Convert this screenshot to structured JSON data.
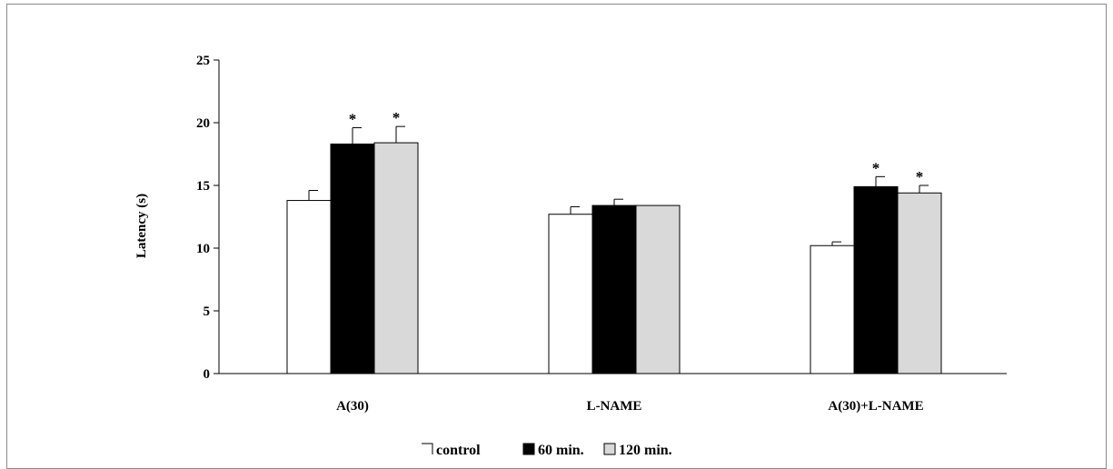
{
  "chart_data": {
    "type": "bar",
    "title": "",
    "xlabel": "",
    "ylabel": "Latency (s)",
    "ylim": [
      0,
      25
    ],
    "yticks": [
      0,
      5,
      10,
      15,
      20,
      25
    ],
    "grid": false,
    "legend_position": "bottom",
    "categories": [
      "A(30)",
      "L-NAME",
      "A(30)+L-NAME"
    ],
    "series": [
      {
        "name": "control",
        "color": "#ffffff",
        "values": [
          13.8,
          12.7,
          10.2
        ],
        "errors": [
          0.8,
          0.6,
          0.3
        ],
        "significant": [
          false,
          false,
          false
        ]
      },
      {
        "name": "60 min.",
        "color": "#000000",
        "values": [
          18.3,
          13.4,
          14.9
        ],
        "errors": [
          1.3,
          0.5,
          0.8
        ],
        "significant": [
          true,
          false,
          true
        ]
      },
      {
        "name": "120 min.",
        "color": "#d9d9d9",
        "values": [
          18.4,
          13.4,
          14.4
        ],
        "errors": [
          1.3,
          0,
          0.6
        ],
        "significant": [
          true,
          false,
          true
        ]
      }
    ],
    "significance_marker": "*"
  }
}
